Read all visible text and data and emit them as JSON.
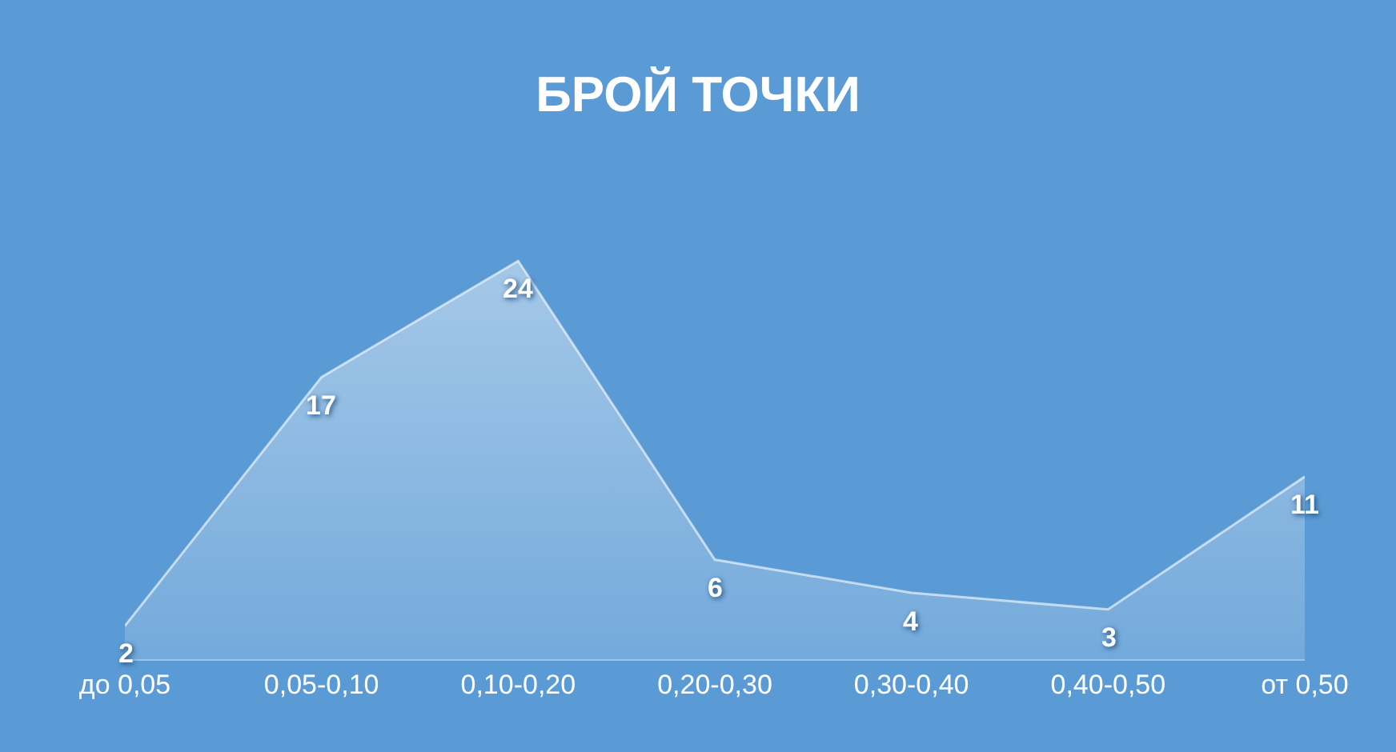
{
  "chart_data": {
    "type": "area",
    "title": "БРОЙ ТОЧКИ",
    "categories": [
      "до 0,05",
      "0,05-0,10",
      "0,10-0,20",
      "0,20-0,30",
      "0,30-0,40",
      "0,40-0,50",
      "от 0,50"
    ],
    "values": [
      2,
      17,
      24,
      6,
      4,
      3,
      11
    ],
    "color": "#ffffff",
    "tick_labels": "x",
    "grid": false,
    "legend": false,
    "data_labels": true
  }
}
